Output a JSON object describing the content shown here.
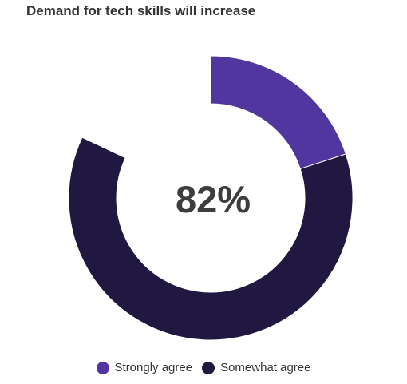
{
  "chart_data": {
    "type": "pie",
    "title": "Demand for tech skills will increase",
    "center_label": "82%",
    "total_percent": 82,
    "series": [
      {
        "name": "Strongly agree",
        "value": 20,
        "color": "#5236a0"
      },
      {
        "name": "Somewhat agree",
        "value": 62,
        "color": "#211842"
      }
    ],
    "legend_position": "bottom"
  }
}
